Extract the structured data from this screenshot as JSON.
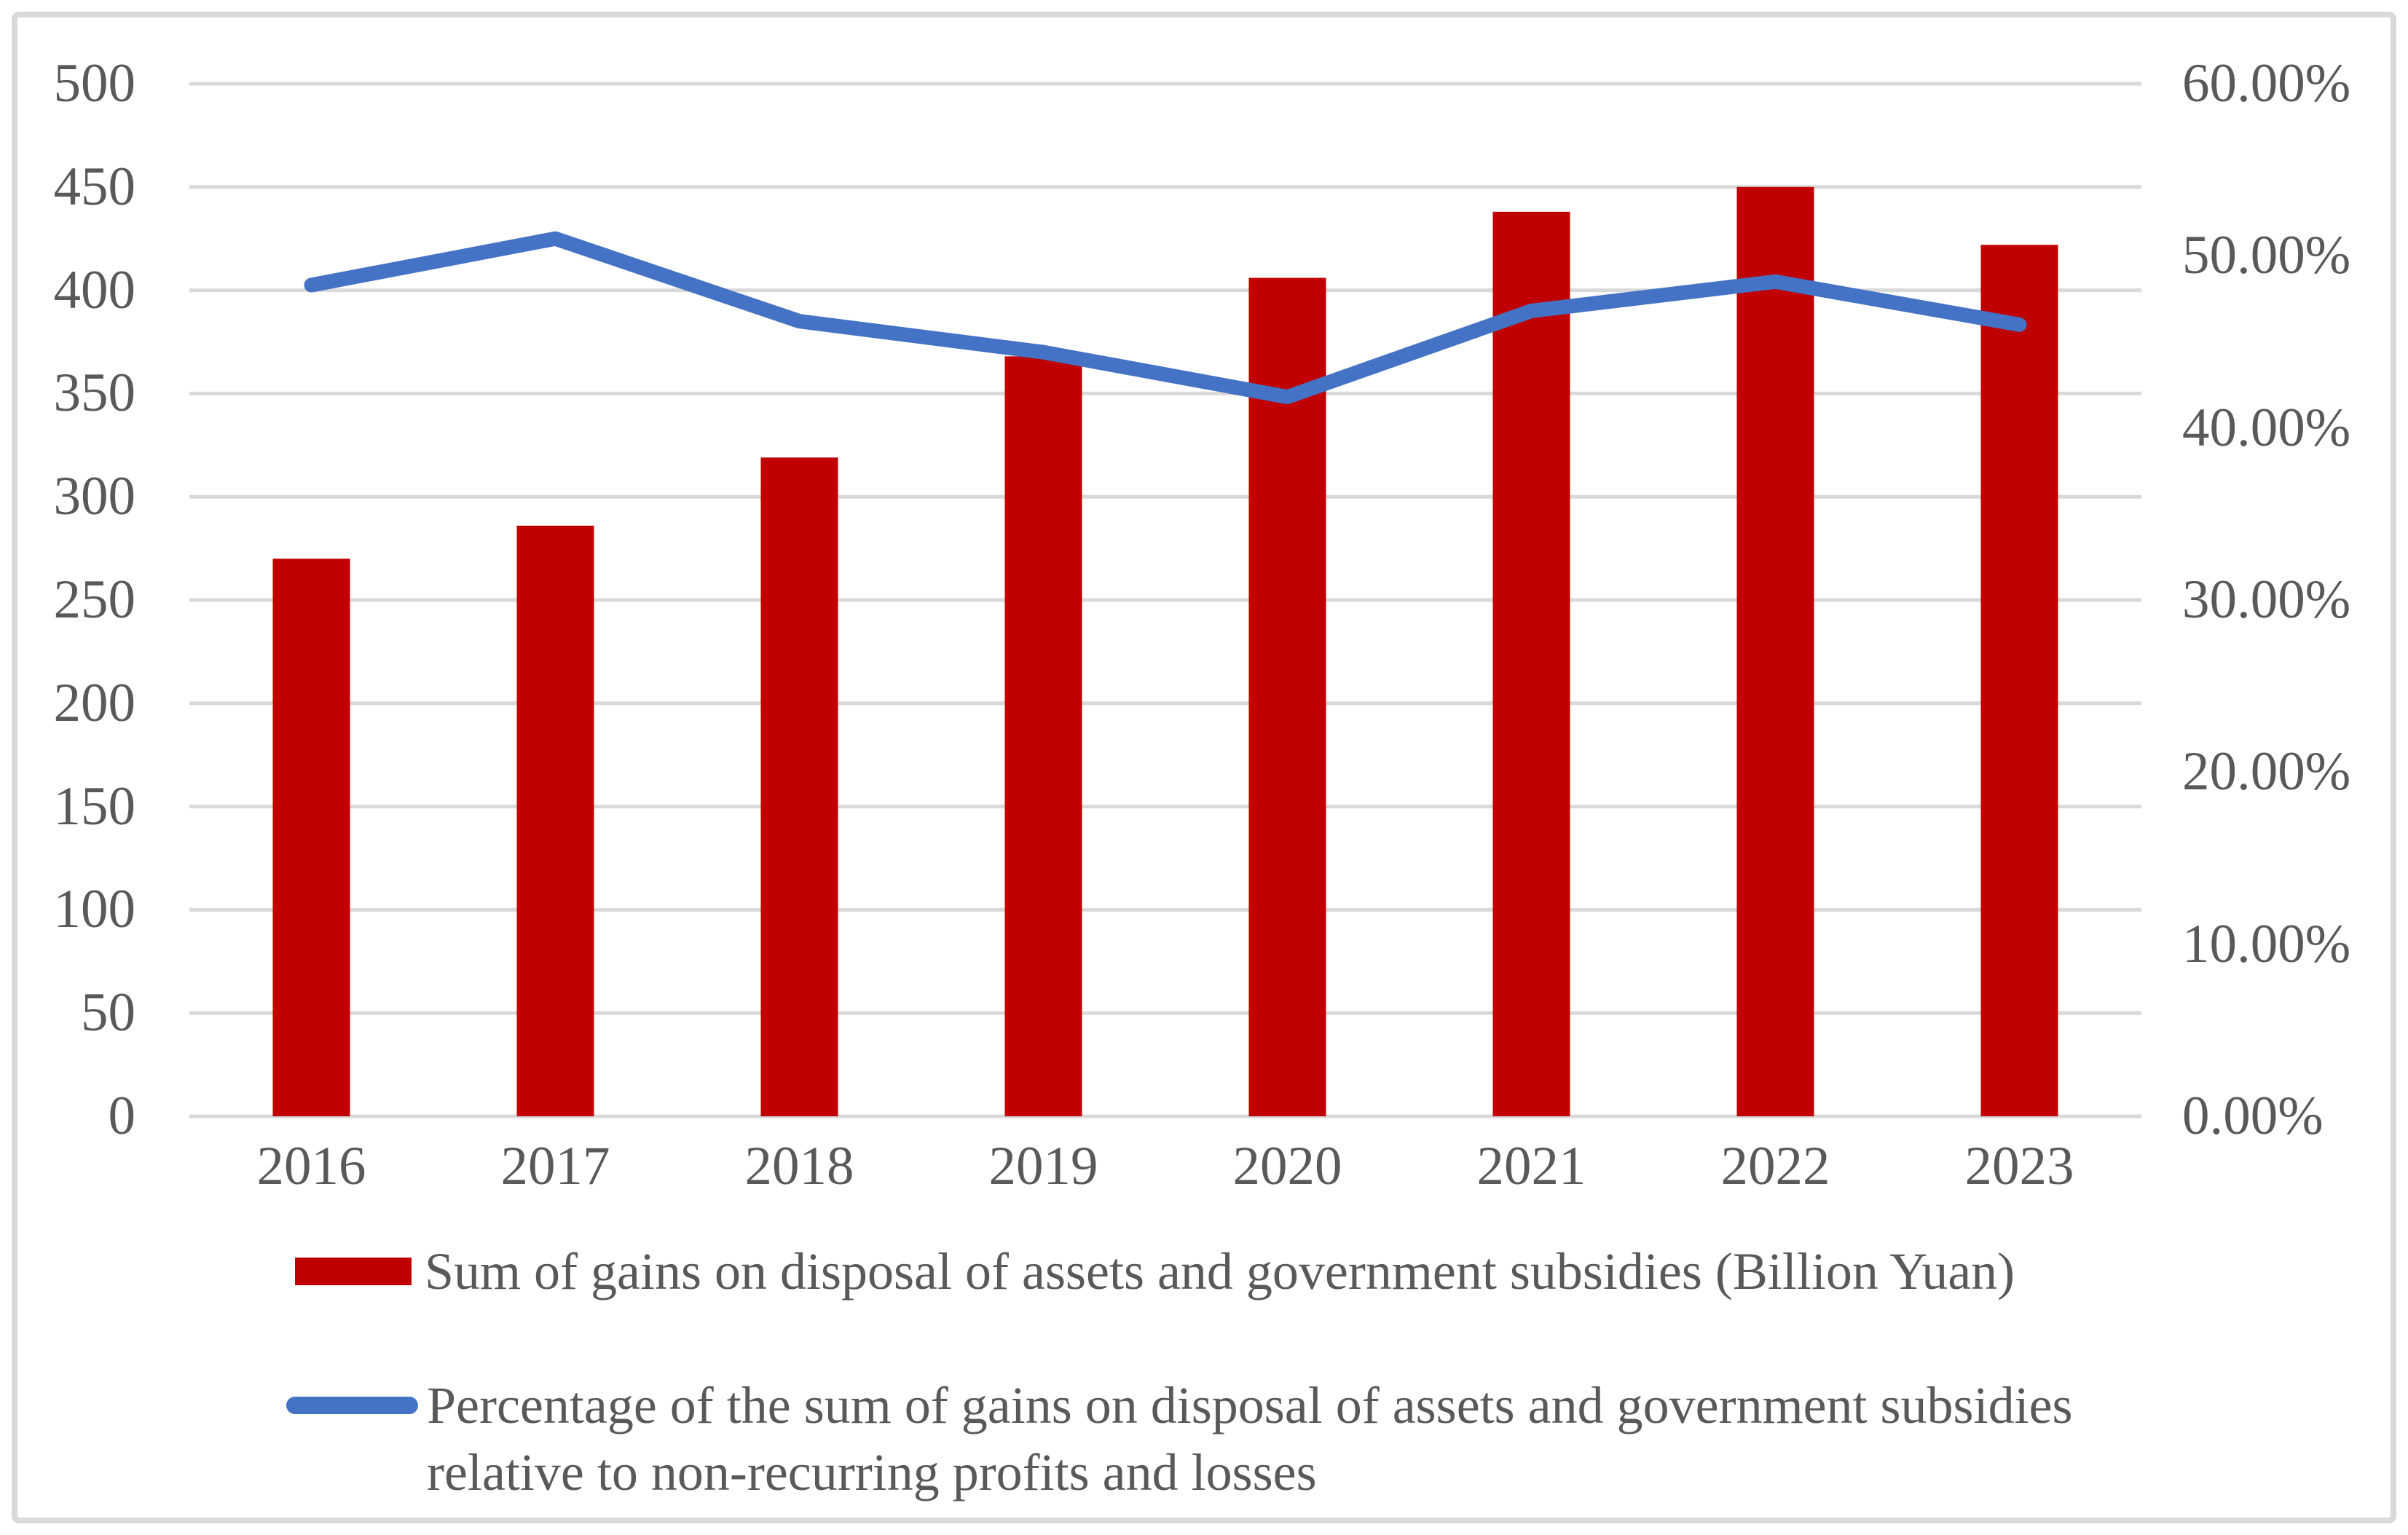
{
  "chart_data": {
    "type": "bar+line combo",
    "categories": [
      "2016",
      "2017",
      "2018",
      "2019",
      "2020",
      "2021",
      "2022",
      "2023"
    ],
    "series": [
      {
        "name": "Sum of gains on disposal of assets and government subsidies (Billion Yuan)",
        "type": "bar",
        "axis": "left",
        "color": "#C00000",
        "values": [
          270,
          286,
          319,
          368,
          406,
          438,
          450,
          422
        ]
      },
      {
        "name": "Percentage of the sum of gains on disposal of assets and government subsidies relative to non-recurring profits and losses",
        "type": "line",
        "axis": "right",
        "color": "#4472C4",
        "values": [
          48.3,
          51.0,
          46.2,
          44.4,
          41.8,
          46.8,
          48.5,
          46.0
        ]
      }
    ],
    "title": "",
    "xlabel": "",
    "ylabel": "",
    "left_axis": {
      "min": 0,
      "max": 500,
      "step": 50,
      "tick_labels": [
        "0",
        "50",
        "100",
        "150",
        "200",
        "250",
        "300",
        "350",
        "400",
        "450",
        "500"
      ]
    },
    "right_axis": {
      "min": 0,
      "max": 60,
      "step": 10,
      "tick_labels": [
        "0.00%",
        "10.00%",
        "20.00%",
        "30.00%",
        "40.00%",
        "50.00%",
        "60.00%"
      ]
    },
    "grid": true,
    "legend_position": "bottom-left"
  },
  "legend": {
    "items": [
      {
        "swatch": "bar-swatch",
        "label": "Sum of gains on disposal of assets and government subsidies (Billion Yuan)"
      },
      {
        "swatch": "line-swatch",
        "label": "Percentage of the sum of gains on disposal of assets and government subsidies relative to non-recurring profits and losses"
      }
    ]
  },
  "colors": {
    "bar": "#C00000",
    "line": "#4472C4",
    "gridline": "#D9D9D9",
    "frame_border": "#D9D9D9",
    "text": "#595959",
    "background": "#ffffff"
  }
}
